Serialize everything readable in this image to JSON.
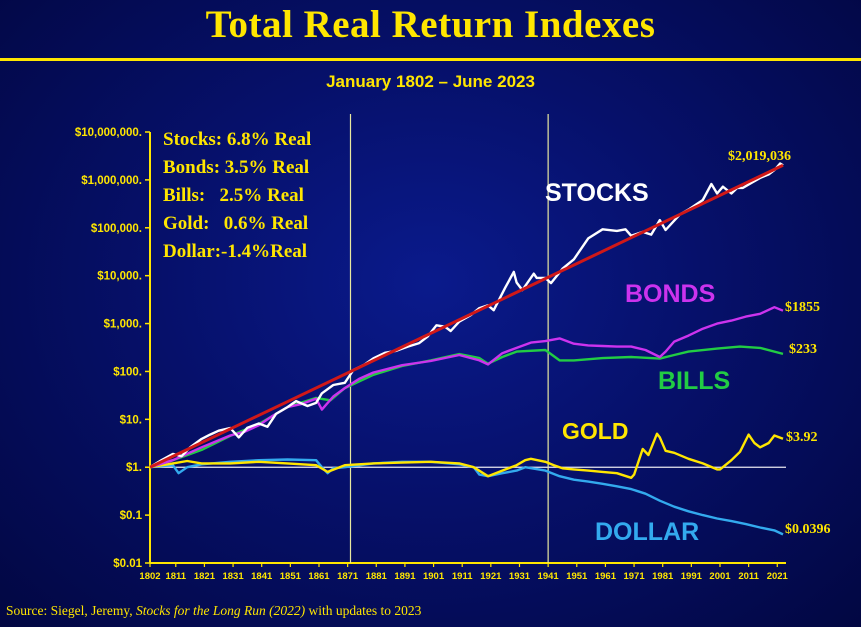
{
  "title": "Total Real Return Indexes",
  "subtitle": "January 1802 – June 2023",
  "stats": [
    "Stocks: 6.8% Real",
    "Bonds: 3.5% Real",
    "Bills:   2.5% Real",
    "Gold:   0.6% Real",
    "Dollar:-1.4%Real"
  ],
  "source": {
    "prefix": "Source: Siegel, Jeremy, ",
    "book": "Stocks for the Long Run (2022)",
    "suffix": " with updates to 2023"
  },
  "colors": {
    "text": "#ffe600",
    "stocks": "#ffffff",
    "trend": "#d01818",
    "bonds": "#cc33ee",
    "bills": "#22cc44",
    "gold": "#ffe600",
    "dollar": "#33aaee"
  },
  "chart_data": {
    "type": "line",
    "yscale": "log",
    "ylim": [
      0.01,
      10000000
    ],
    "xlim": [
      1802,
      2023
    ],
    "grid": false,
    "y_tick_labels": [
      "$0.01",
      "$0.1",
      "$1.",
      "$10.",
      "$100.",
      "$1,000.",
      "$10,000.",
      "$100,000.",
      "$1,000,000.",
      "$10,000,000."
    ],
    "y_tick_values": [
      0.01,
      0.1,
      1,
      10,
      100,
      1000,
      10000,
      100000,
      1000000,
      10000000
    ],
    "x_tick_labels": [
      "1802",
      "1811",
      "1821",
      "1831",
      "1841",
      "1851",
      "1861",
      "1871",
      "1881",
      "1891",
      "1901",
      "1911",
      "1921",
      "1931",
      "1941",
      "1951",
      "1961",
      "1971",
      "1981",
      "1991",
      "2001",
      "2011",
      "2021"
    ],
    "x_tick_values": [
      1802,
      1811,
      1821,
      1831,
      1841,
      1851,
      1861,
      1871,
      1881,
      1891,
      1901,
      1911,
      1921,
      1931,
      1941,
      1951,
      1961,
      1971,
      1981,
      1991,
      2001,
      2011,
      2021
    ],
    "vertical_lines": [
      1872,
      1941
    ],
    "reference_line": 1,
    "trend": {
      "x": [
        1802,
        2023
      ],
      "y": [
        1,
        2019036
      ]
    },
    "series": [
      {
        "name": "STOCKS",
        "color": "#ffffff",
        "end_label": "$2,019,036",
        "x": [
          1802,
          1806,
          1810,
          1813,
          1816,
          1820,
          1823,
          1826,
          1830,
          1833,
          1836,
          1840,
          1843,
          1846,
          1850,
          1853,
          1857,
          1860,
          1862,
          1866,
          1870,
          1873,
          1877,
          1880,
          1884,
          1888,
          1892,
          1896,
          1899,
          1902,
          1905,
          1907,
          1910,
          1914,
          1917,
          1920,
          1922,
          1926,
          1929,
          1930,
          1932,
          1936,
          1937,
          1940,
          1942,
          1946,
          1950,
          1955,
          1960,
          1965,
          1968,
          1970,
          1974,
          1977,
          1980,
          1982,
          1987,
          1990,
          1995,
          1998,
          2000,
          2002,
          2005,
          2007,
          2009,
          2012,
          2015,
          2018,
          2020,
          2022,
          2023
        ],
        "y": [
          1,
          1.4,
          1.9,
          1.7,
          2.6,
          3.9,
          4.8,
          5.8,
          6.6,
          4.2,
          6.7,
          8.2,
          7,
          13,
          18,
          24,
          19,
          22,
          35,
          52,
          58,
          107,
          140,
          188,
          245,
          270,
          330,
          390,
          540,
          920,
          860,
          700,
          1100,
          1500,
          2100,
          2400,
          1900,
          5600,
          12000,
          7200,
          5000,
          11000,
          9000,
          9000,
          7000,
          14000,
          22000,
          60000,
          93000,
          86000,
          93000,
          68000,
          82000,
          72000,
          145000,
          90000,
          190000,
          240000,
          380000,
          820000,
          520000,
          720000,
          520000,
          680000,
          680000,
          870000,
          1100000,
          1300000,
          1600000,
          2200000,
          2019036
        ]
      },
      {
        "name": "BONDS",
        "color": "#cc33ee",
        "end_label": "$1855",
        "x": [
          1802,
          1810,
          1820,
          1830,
          1835,
          1840,
          1845,
          1850,
          1855,
          1860,
          1862,
          1866,
          1870,
          1875,
          1880,
          1890,
          1900,
          1910,
          1917,
          1920,
          1925,
          1930,
          1935,
          1940,
          1945,
          1950,
          1955,
          1960,
          1965,
          1970,
          1975,
          1980,
          1982,
          1985,
          1990,
          1995,
          2000,
          2005,
          2010,
          2015,
          2020,
          2023
        ],
        "y": [
          1,
          1.4,
          2.6,
          4.6,
          5.5,
          7.5,
          12,
          18,
          21,
          27,
          16,
          30,
          45,
          70,
          95,
          135,
          165,
          220,
          170,
          140,
          240,
          310,
          400,
          430,
          490,
          380,
          350,
          340,
          330,
          330,
          280,
          200,
          260,
          420,
          560,
          780,
          1000,
          1150,
          1400,
          1600,
          2200,
          1855
        ]
      },
      {
        "name": "BILLS",
        "color": "#22cc44",
        "end_label": "$233",
        "x": [
          1802,
          1810,
          1820,
          1830,
          1840,
          1845,
          1850,
          1860,
          1865,
          1870,
          1880,
          1890,
          1900,
          1910,
          1917,
          1920,
          1925,
          1930,
          1940,
          1945,
          1950,
          1960,
          1970,
          1980,
          1985,
          1990,
          2000,
          2008,
          2015,
          2023
        ],
        "y": [
          1,
          1.4,
          2.3,
          4.5,
          8,
          12,
          18,
          28,
          25,
          45,
          85,
          130,
          170,
          230,
          190,
          145,
          200,
          260,
          280,
          170,
          170,
          190,
          200,
          185,
          220,
          260,
          300,
          330,
          310,
          233
        ]
      },
      {
        "name": "GOLD",
        "color": "#ffe600",
        "end_label": "$3.92",
        "x": [
          1802,
          1810,
          1815,
          1820,
          1830,
          1840,
          1850,
          1860,
          1864,
          1870,
          1880,
          1890,
          1900,
          1910,
          1915,
          1920,
          1925,
          1930,
          1933,
          1935,
          1940,
          1943,
          1946,
          1950,
          1955,
          1960,
          1965,
          1970,
          1971,
          1974,
          1976,
          1979,
          1980,
          1982,
          1985,
          1990,
          1995,
          2000,
          2001,
          2005,
          2008,
          2011,
          2013,
          2015,
          2018,
          2020,
          2023
        ],
        "y": [
          1,
          1.2,
          1.35,
          1.2,
          1.2,
          1.3,
          1.2,
          1.1,
          0.8,
          1.1,
          1.2,
          1.25,
          1.3,
          1.2,
          1.0,
          0.65,
          0.85,
          1.1,
          1.4,
          1.5,
          1.3,
          1.1,
          0.95,
          0.9,
          0.85,
          0.8,
          0.75,
          0.6,
          0.7,
          2.4,
          1.8,
          5.0,
          4.2,
          2.2,
          2.0,
          1.5,
          1.2,
          0.9,
          0.9,
          1.4,
          2.1,
          4.8,
          3.2,
          2.6,
          3.2,
          4.6,
          3.92
        ]
      },
      {
        "name": "DOLLAR",
        "color": "#33aaee",
        "end_label": "$0.0396",
        "x": [
          1802,
          1810,
          1812,
          1815,
          1820,
          1830,
          1840,
          1850,
          1860,
          1862,
          1864,
          1866,
          1870,
          1880,
          1890,
          1900,
          1910,
          1915,
          1917,
          1920,
          1925,
          1930,
          1933,
          1940,
          1945,
          1950,
          1955,
          1960,
          1965,
          1970,
          1975,
          1980,
          1985,
          1990,
          1995,
          2000,
          2005,
          2010,
          2015,
          2020,
          2023
        ],
        "y": [
          1,
          1.1,
          0.75,
          1.0,
          1.15,
          1.3,
          1.4,
          1.45,
          1.4,
          1.0,
          0.75,
          0.95,
          1.0,
          1.2,
          1.3,
          1.3,
          1.15,
          1.0,
          0.7,
          0.65,
          0.75,
          0.85,
          1.0,
          0.85,
          0.65,
          0.55,
          0.5,
          0.45,
          0.4,
          0.35,
          0.28,
          0.2,
          0.15,
          0.12,
          0.1,
          0.085,
          0.075,
          0.065,
          0.055,
          0.048,
          0.0396
        ]
      }
    ],
    "series_labels": [
      "STOCKS",
      "BONDS",
      "BILLS",
      "GOLD",
      "DOLLAR"
    ]
  }
}
